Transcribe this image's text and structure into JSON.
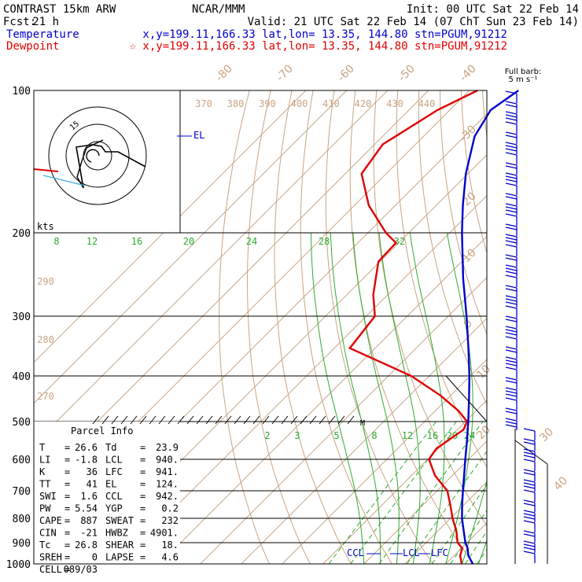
{
  "header": {
    "model": "CONTRAST 15km ARW",
    "org": "NCAR/MMM",
    "init": "Init: 00 UTC Sat 22 Feb 14",
    "fcst_label": "Fcst:",
    "fcst_value": "21 h",
    "valid": "Valid: 21 UTC Sat 22 Feb 14 (07 ChT Sun 23 Feb 14)",
    "temp_label": "Temperature",
    "temp_loc": "x,y=199.11,166.33   lat,lon= 13.35, 144.80   stn=PGUM,91212",
    "dew_label": "Dewpoint",
    "dew_loc": "☆ x,y=199.11,166.33   lat,lon= 13.35, 144.80   stn=PGUM,91212",
    "barb_title_1": "Full barb:",
    "barb_title_2": "5 m s⁻¹",
    "hodo_units": "kts"
  },
  "colors": {
    "temperature": "#0000cc",
    "dewpoint": "#e00000",
    "isotherm": "#c8a484",
    "moist": "#2eab2e"
  },
  "chart_data": {
    "type": "line",
    "title": "CONTRAST 15km ARW",
    "skewt": true,
    "pressure_levels": [
      "100",
      "200",
      "300",
      "400",
      "500",
      "600",
      "700",
      "800",
      "900",
      "1000"
    ],
    "isotherm_labels": [
      "-80",
      "-70",
      "-60",
      "-50",
      "-40",
      "-30",
      "-20",
      "-10",
      "0",
      "10",
      "20",
      "30",
      "40"
    ],
    "theta_labels": [
      "370",
      "380",
      "390",
      "400",
      "410",
      "420",
      "430",
      "440"
    ],
    "theta_side_labels": [
      "290",
      "280",
      "270"
    ],
    "moist_labels_upper": [
      "8",
      "12",
      "16",
      "20",
      "24",
      "28",
      "32"
    ],
    "mix_labels": [
      "2",
      "3",
      "5",
      "8",
      "12",
      "16",
      "20",
      "24"
    ],
    "series": [
      {
        "name": "Temperature",
        "p": [
          1000,
          960,
          925,
          900,
          850,
          800,
          750,
          700,
          650,
          600,
          550,
          500,
          450,
          400,
          350,
          300,
          250,
          200,
          175,
          150,
          125,
          110,
          100
        ],
        "t": [
          26.6,
          23.5,
          21.5,
          19.6,
          16.3,
          12.8,
          9.6,
          6.3,
          2.9,
          -0.8,
          -4.8,
          -9.3,
          -14.4,
          -20.2,
          -27.2,
          -35.5,
          -45.5,
          -57,
          -63.5,
          -70.5,
          -77.5,
          -80,
          -78
        ]
      },
      {
        "name": "Dewpoint",
        "p": [
          1000,
          960,
          925,
          900,
          850,
          800,
          750,
          700,
          650,
          600,
          570,
          520,
          500,
          475,
          440,
          400,
          350,
          300,
          270,
          230,
          210,
          200,
          175,
          150,
          130,
          110,
          100
        ],
        "t": [
          23.9,
          21.5,
          20.2,
          17.7,
          14.5,
          10.5,
          6.7,
          2.5,
          -4.2,
          -9.7,
          -10.5,
          -8.5,
          -9.6,
          -14.2,
          -22.5,
          -34.4,
          -56.2,
          -57.9,
          -63.6,
          -70.4,
          -70.7,
          -75.6,
          -86.5,
          -96,
          -98,
          -93,
          -88
        ]
      }
    ],
    "levels": {
      "CCL": 942,
      "LCL": 940,
      "LFC": 941,
      "EL": 124
    }
  },
  "parcel_info": {
    "title": "Parcel Info",
    "rows": [
      [
        "T",
        "=",
        "26.6",
        "Td",
        "=",
        "23.9"
      ],
      [
        "LI",
        "=",
        "-1.8",
        "LCL",
        "=",
        "940."
      ],
      [
        "K",
        "=",
        "36",
        "LFC",
        "=",
        "941."
      ],
      [
        "TT",
        "=",
        "41",
        "EL",
        "=",
        "124."
      ],
      [
        "SWI",
        "=",
        "1.6",
        "CCL",
        "=",
        "942."
      ],
      [
        "PW",
        "=",
        "5.54",
        "YGP",
        "=",
        "0.2"
      ],
      [
        "CAPE",
        "=",
        "887",
        "SWEAT",
        "=",
        "232"
      ],
      [
        "CIN",
        "=",
        "-21",
        "HWBZ",
        "=",
        "4901."
      ],
      [
        "Tc",
        "=",
        "26.8",
        "SHEAR",
        "=",
        "18."
      ],
      [
        "SREH",
        "=",
        "0",
        "LAPSE",
        "=",
        "4.6"
      ],
      [
        "CELL",
        "=",
        "089/03",
        "",
        "",
        ""
      ]
    ]
  },
  "level_labels": {
    "el": "EL",
    "ccl": "CCL",
    "lcl": "LCL",
    "lfc": "LFC",
    "wbz": "M"
  }
}
